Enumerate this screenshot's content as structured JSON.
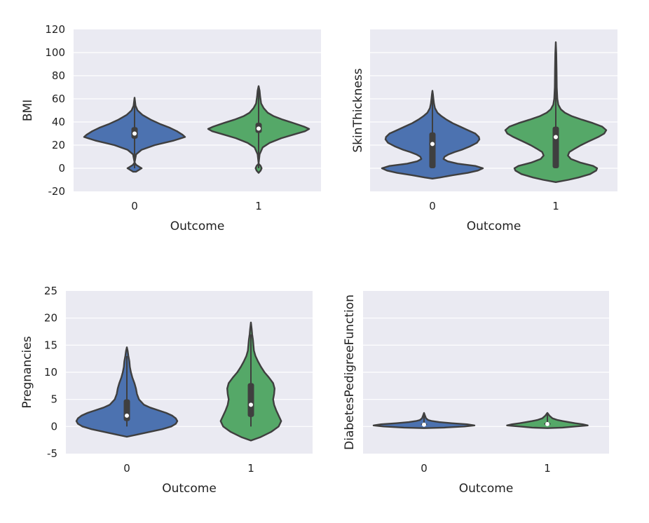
{
  "chart_data": [
    {
      "type": "violin",
      "xlabel": "Outcome",
      "ylabel": "BMI",
      "categories": [
        "0",
        "1"
      ],
      "ylim": [
        -20,
        120
      ],
      "yticks": [
        -20,
        0,
        20,
        40,
        60,
        80,
        100,
        120
      ],
      "grid": true,
      "colors": [
        "#4c72b0",
        "#55a868"
      ],
      "violins": [
        {
          "category": "0",
          "min": 0,
          "q1": 25.5,
          "median": 30.0,
          "q3": 35.5,
          "max": 57,
          "profile": [
            [
              -3,
              0.03
            ],
            [
              -1,
              0.1
            ],
            [
              0,
              0.14
            ],
            [
              1,
              0.1
            ],
            [
              3,
              0.03
            ],
            [
              5,
              0.0
            ],
            [
              12,
              0.03
            ],
            [
              16,
              0.14
            ],
            [
              20,
              0.4
            ],
            [
              24,
              0.78
            ],
            [
              27,
              1.0
            ],
            [
              29,
              0.95
            ],
            [
              32,
              0.84
            ],
            [
              35,
              0.7
            ],
            [
              38,
              0.52
            ],
            [
              42,
              0.32
            ],
            [
              46,
              0.16
            ],
            [
              50,
              0.06
            ],
            [
              54,
              0.02
            ],
            [
              61,
              0.0
            ]
          ]
        },
        {
          "category": "1",
          "min": 0,
          "q1": 30.5,
          "median": 34.3,
          "q3": 39.3,
          "max": 67,
          "profile": [
            [
              -4,
              0.0
            ],
            [
              -2,
              0.04
            ],
            [
              0,
              0.06
            ],
            [
              2,
              0.04
            ],
            [
              4,
              0.0
            ],
            [
              12,
              0.02
            ],
            [
              18,
              0.08
            ],
            [
              22,
              0.22
            ],
            [
              26,
              0.45
            ],
            [
              29,
              0.68
            ],
            [
              32,
              0.92
            ],
            [
              34,
              1.0
            ],
            [
              36,
              0.9
            ],
            [
              39,
              0.7
            ],
            [
              42,
              0.48
            ],
            [
              45,
              0.3
            ],
            [
              48,
              0.18
            ],
            [
              52,
              0.1
            ],
            [
              56,
              0.05
            ],
            [
              62,
              0.03
            ],
            [
              67,
              0.02
            ],
            [
              71,
              0.0
            ]
          ]
        }
      ]
    },
    {
      "type": "violin",
      "xlabel": "Outcome",
      "ylabel": "SkinThickness",
      "categories": [
        "0",
        "1"
      ],
      "ylim": [
        -20,
        120
      ],
      "yticks": [
        -20,
        0,
        20,
        40,
        60,
        80,
        100,
        120
      ],
      "show_ytick_labels": false,
      "grid": true,
      "colors": [
        "#4c72b0",
        "#55a868"
      ],
      "violins": [
        {
          "category": "0",
          "min": 0,
          "q1": 0,
          "median": 21,
          "q3": 31,
          "max": 60,
          "profile": [
            [
              -9,
              0.0
            ],
            [
              -8,
              0.15
            ],
            [
              -6,
              0.4
            ],
            [
              -4,
              0.7
            ],
            [
              -2,
              0.9
            ],
            [
              0,
              1.0
            ],
            [
              2,
              0.85
            ],
            [
              4,
              0.5
            ],
            [
              6,
              0.3
            ],
            [
              8,
              0.22
            ],
            [
              10,
              0.24
            ],
            [
              12,
              0.32
            ],
            [
              14,
              0.44
            ],
            [
              16,
              0.58
            ],
            [
              19,
              0.75
            ],
            [
              22,
              0.88
            ],
            [
              25,
              0.93
            ],
            [
              27,
              0.92
            ],
            [
              30,
              0.85
            ],
            [
              33,
              0.7
            ],
            [
              36,
              0.55
            ],
            [
              39,
              0.4
            ],
            [
              42,
              0.28
            ],
            [
              45,
              0.18
            ],
            [
              48,
              0.1
            ],
            [
              52,
              0.05
            ],
            [
              56,
              0.03
            ],
            [
              60,
              0.02
            ],
            [
              64,
              0.01
            ],
            [
              67,
              0.0
            ]
          ]
        },
        {
          "category": "1",
          "min": 0,
          "q1": 0,
          "median": 27,
          "q3": 36,
          "max": 99,
          "profile": [
            [
              -12,
              0.0
            ],
            [
              -10,
              0.25
            ],
            [
              -8,
              0.45
            ],
            [
              -5,
              0.68
            ],
            [
              -2,
              0.8
            ],
            [
              0,
              0.82
            ],
            [
              2,
              0.74
            ],
            [
              5,
              0.48
            ],
            [
              8,
              0.3
            ],
            [
              11,
              0.24
            ],
            [
              14,
              0.27
            ],
            [
              17,
              0.38
            ],
            [
              20,
              0.5
            ],
            [
              23,
              0.64
            ],
            [
              27,
              0.84
            ],
            [
              30,
              0.96
            ],
            [
              33,
              1.0
            ],
            [
              36,
              0.92
            ],
            [
              39,
              0.74
            ],
            [
              42,
              0.52
            ],
            [
              45,
              0.32
            ],
            [
              48,
              0.18
            ],
            [
              51,
              0.1
            ],
            [
              55,
              0.05
            ],
            [
              60,
              0.03
            ],
            [
              70,
              0.02
            ],
            [
              85,
              0.015
            ],
            [
              99,
              0.01
            ],
            [
              109,
              0.0
            ]
          ]
        }
      ]
    },
    {
      "type": "violin",
      "xlabel": "Outcome",
      "ylabel": "Pregnancies",
      "categories": [
        "0",
        "1"
      ],
      "ylim": [
        -5,
        25
      ],
      "yticks": [
        -5,
        0,
        5,
        10,
        15,
        20,
        25
      ],
      "grid": true,
      "colors": [
        "#4c72b0",
        "#55a868"
      ],
      "violins": [
        {
          "category": "0",
          "min": 0,
          "q1": 1,
          "median": 2,
          "q3": 5,
          "max": 13,
          "profile": [
            [
              -1.9,
              0.0
            ],
            [
              -1.5,
              0.2
            ],
            [
              -1,
              0.45
            ],
            [
              -0.5,
              0.7
            ],
            [
              0,
              0.88
            ],
            [
              0.5,
              0.97
            ],
            [
              1,
              1.0
            ],
            [
              1.5,
              0.97
            ],
            [
              2,
              0.9
            ],
            [
              2.5,
              0.78
            ],
            [
              3,
              0.62
            ],
            [
              3.5,
              0.46
            ],
            [
              4,
              0.34
            ],
            [
              5,
              0.24
            ],
            [
              6,
              0.2
            ],
            [
              7,
              0.18
            ],
            [
              8,
              0.15
            ],
            [
              9,
              0.11
            ],
            [
              10,
              0.08
            ],
            [
              11,
              0.06
            ],
            [
              12,
              0.05
            ],
            [
              13,
              0.03
            ],
            [
              14,
              0.015
            ],
            [
              14.6,
              0.0
            ]
          ]
        },
        {
          "category": "1",
          "min": 0,
          "q1": 1.75,
          "median": 4,
          "q3": 8,
          "max": 17,
          "profile": [
            [
              -2.6,
              0.0
            ],
            [
              -2,
              0.18
            ],
            [
              -1,
              0.4
            ],
            [
              0,
              0.55
            ],
            [
              1,
              0.6
            ],
            [
              2,
              0.55
            ],
            [
              3,
              0.5
            ],
            [
              4,
              0.46
            ],
            [
              5,
              0.44
            ],
            [
              6,
              0.46
            ],
            [
              7,
              0.47
            ],
            [
              8,
              0.44
            ],
            [
              9,
              0.36
            ],
            [
              10,
              0.27
            ],
            [
              11,
              0.2
            ],
            [
              12,
              0.14
            ],
            [
              13,
              0.09
            ],
            [
              14,
              0.06
            ],
            [
              15,
              0.05
            ],
            [
              16,
              0.04
            ],
            [
              17,
              0.025
            ],
            [
              18,
              0.015
            ],
            [
              19.2,
              0.0
            ]
          ]
        }
      ]
    },
    {
      "type": "violin",
      "xlabel": "Outcome",
      "ylabel": "DiabetesPedigreeFunction",
      "categories": [
        "0",
        "1"
      ],
      "ylim": [
        -5,
        25
      ],
      "yticks": [
        -5,
        0,
        5,
        10,
        15,
        20,
        25
      ],
      "show_ytick_labels": false,
      "grid": true,
      "colors": [
        "#4c72b0",
        "#55a868"
      ],
      "violins": [
        {
          "category": "0",
          "min": 0.078,
          "q1": 0.23,
          "median": 0.34,
          "q3": 0.56,
          "max": 2.33,
          "profile": [
            [
              -0.3,
              0.0
            ],
            [
              -0.2,
              0.4
            ],
            [
              0,
              0.8
            ],
            [
              0.2,
              1.0
            ],
            [
              0.4,
              0.85
            ],
            [
              0.6,
              0.55
            ],
            [
              0.8,
              0.3
            ],
            [
              1.0,
              0.16
            ],
            [
              1.2,
              0.08
            ],
            [
              1.5,
              0.04
            ],
            [
              2.0,
              0.02
            ],
            [
              2.5,
              0.0
            ]
          ]
        },
        {
          "category": "1",
          "min": 0.088,
          "q1": 0.26,
          "median": 0.45,
          "q3": 0.73,
          "max": 2.42,
          "profile": [
            [
              -0.3,
              0.0
            ],
            [
              -0.2,
              0.3
            ],
            [
              0,
              0.55
            ],
            [
              0.2,
              0.8
            ],
            [
              0.4,
              0.7
            ],
            [
              0.6,
              0.55
            ],
            [
              0.8,
              0.42
            ],
            [
              1.0,
              0.3
            ],
            [
              1.2,
              0.2
            ],
            [
              1.5,
              0.1
            ],
            [
              2.0,
              0.04
            ],
            [
              2.5,
              0.0
            ]
          ]
        }
      ]
    }
  ]
}
